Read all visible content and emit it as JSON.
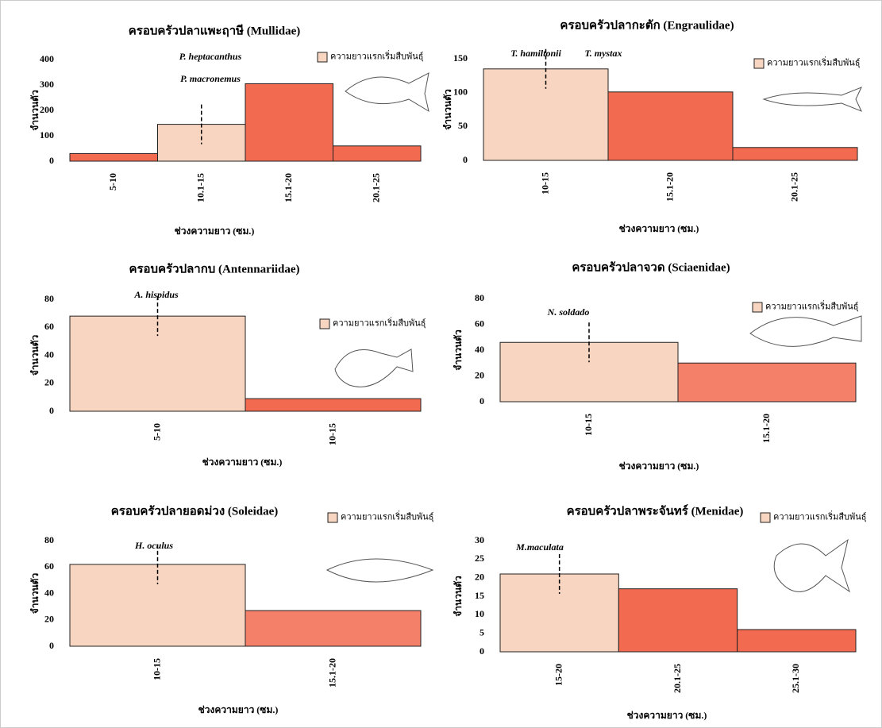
{
  "chart_data": [
    {
      "type": "bar",
      "title": "ครอบครัวปลาแพะฤาษี (Mullidae)",
      "x_label": "ช่วงความยาว (ซม.)",
      "y_label": "จำนวนตัว",
      "categories": [
        "5-10",
        "10.1-15",
        "15.1-20",
        "20.1-25"
      ],
      "values": [
        30,
        145,
        305,
        60
      ],
      "colors": [
        "#f26b50",
        "#f8d5c0",
        "#f26b50",
        "#f26b50"
      ],
      "ylim": [
        0,
        400
      ],
      "yticks": [
        0,
        100,
        200,
        300,
        400
      ],
      "legend": {
        "label": "ความยาวแรกเริ่มสืบพันธุ์",
        "color": "#f8d5c0"
      },
      "annotations": [
        "P. heptacanthus",
        "P. macronemus"
      ]
    },
    {
      "type": "bar",
      "title": "ครอบครัวปลากะตัก (Engraulidae)",
      "x_label": "ช่วงความยาว (ซม.)",
      "y_label": "จำนวนตัว",
      "categories": [
        "10-15",
        "15.1-20",
        "20.1-25"
      ],
      "values": [
        135,
        101,
        19
      ],
      "colors": [
        "#f8d5c0",
        "#f26b50",
        "#f26b50"
      ],
      "ylim": [
        0,
        150
      ],
      "yticks": [
        0,
        50,
        100,
        150
      ],
      "legend": {
        "label": "ความยาวแรกเริ่มสืบพันธุ์",
        "color": "#f8d5c0"
      },
      "annotations": [
        "T. hamiltonii",
        "T. mystax"
      ]
    },
    {
      "type": "bar",
      "title": "ครอบครัวปลากบ (Antennariidae)",
      "x_label": "ช่วงความยาว (ซม.)",
      "y_label": "จำนวนตัว",
      "categories": [
        "5-10",
        "10-15"
      ],
      "values": [
        68,
        9
      ],
      "colors": [
        "#f8d5c0",
        "#f26b50"
      ],
      "ylim": [
        0,
        80
      ],
      "yticks": [
        0,
        20,
        40,
        60,
        80
      ],
      "legend": {
        "label": "ความยาวแรกเริ่มสืบพันธุ์",
        "color": "#f8d5c0"
      },
      "annotations": [
        "A. hispidus"
      ]
    },
    {
      "type": "bar",
      "title": "ครอบครัวปลาจวด (Sciaenidae)",
      "x_label": "ช่วงความยาว (ซม.)",
      "y_label": "จำนวนตัว",
      "categories": [
        "10-15",
        "15.1-20"
      ],
      "values": [
        46,
        30
      ],
      "colors": [
        "#f8d5c0",
        "#f5806a"
      ],
      "ylim": [
        0,
        80
      ],
      "yticks": [
        0,
        20,
        40,
        60,
        80
      ],
      "legend": {
        "label": "ความยาวแรกเริ่มสืบพันธุ์",
        "color": "#f8d5c0"
      },
      "annotations": [
        "N. soldado"
      ]
    },
    {
      "type": "bar",
      "title": "ครอบครัวปลายอดม่วง (Soleidae)",
      "x_label": "ช่วงความยาว (ซม.)",
      "y_label": "จำนวนตัว",
      "categories": [
        "10-15",
        "15.1-20"
      ],
      "values": [
        62,
        27
      ],
      "colors": [
        "#f8d5c0",
        "#f5806a"
      ],
      "ylim": [
        0,
        80
      ],
      "yticks": [
        0,
        20,
        40,
        60,
        80
      ],
      "legend": {
        "label": "ความยาวแรกเริ่มสืบพันธุ์",
        "color": "#f8d5c0"
      },
      "annotations": [
        "H. oculus"
      ]
    },
    {
      "type": "bar",
      "title": "ครอบครัวปลาพระจันทร์ (Menidae)",
      "x_label": "ช่วงความยาว (ซม.)",
      "y_label": "จำนวนตัว",
      "categories": [
        "15-20",
        "20.1-25",
        "25.1-30"
      ],
      "values": [
        21,
        17,
        6
      ],
      "colors": [
        "#f8d5c0",
        "#f26b50",
        "#f26b50"
      ],
      "ylim": [
        0,
        30
      ],
      "yticks": [
        0,
        5,
        10,
        15,
        20,
        25,
        30
      ],
      "legend": {
        "label": "ความยาวแรกเริ่มสืบพันธุ์",
        "color": "#f8d5c0"
      },
      "annotations": [
        "M.maculata"
      ]
    }
  ]
}
